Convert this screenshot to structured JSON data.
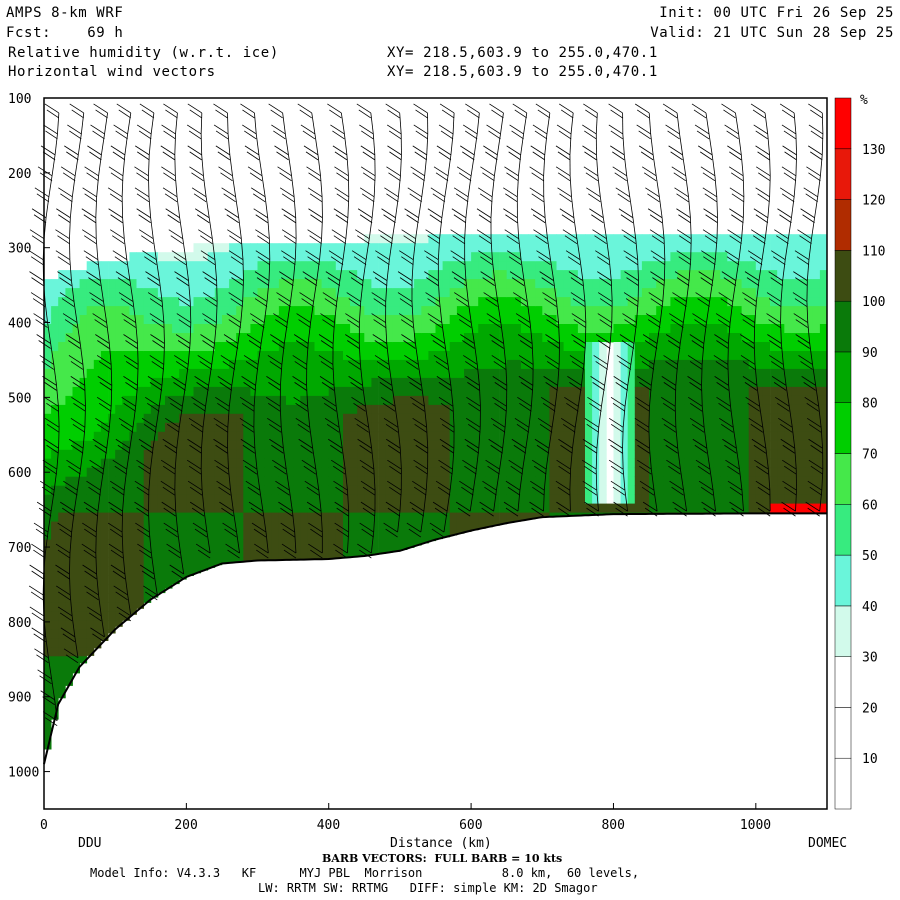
{
  "header": {
    "model": "AMPS 8-km WRF",
    "fcst": "Fcst:    69 h",
    "field1": "Relative humidity (w.r.t. ice)",
    "field2": "Horizontal wind vectors",
    "xy1": "XY= 218.5,603.9 to 255.0,470.1",
    "xy2": "XY= 218.5,603.9 to 255.0,470.1",
    "init": "Init: 00 UTC Fri 26 Sep 25",
    "valid": "Valid: 21 UTC Sun 28 Sep 25"
  },
  "footer": {
    "barb": "BARB VECTORS:  FULL BARB = 10 kts",
    "model_info": "Model Info: V4.3.3   KF      MYJ PBL  Morrison           8.0 km,  60 levels,",
    "physics": "LW: RRTM SW: RRTMG   DIFF: simple KM: 2D Smagor"
  },
  "colors": {
    "c30_40": "#d2faeb",
    "c40_50": "#6af5da",
    "c50_60": "#37eb7f",
    "c60_70": "#45e84a",
    "c70_80": "#00ce00",
    "c80_90": "#00a800",
    "c90_100": "#0a7a0a",
    "c100_110": "#3d4c12",
    "c110_120": "#b02c00",
    "c120_130": "#e8180a",
    "c130_140": "#ff0000"
  },
  "chart_data": {
    "type": "heatmap",
    "title": "Relative humidity (w.r.t. ice)",
    "xlabel": "Distance (km)",
    "ylabel": "",
    "xlim": [
      0,
      1100
    ],
    "ylim": [
      1050,
      100
    ],
    "x_ticks": [
      "0",
      "200",
      "400",
      "600",
      "800",
      "1000"
    ],
    "y_ticks": [
      "100",
      "200",
      "300",
      "400",
      "500",
      "600",
      "700",
      "800",
      "900",
      "1000"
    ],
    "x_end_labels": {
      "left": "DDU",
      "right": "DOMEC"
    },
    "colorbar": {
      "unit": "%",
      "tick_labels": [
        "10",
        "20",
        "30",
        "40",
        "50",
        "60",
        "70",
        "80",
        "90",
        "100",
        "110",
        "120",
        "130"
      ],
      "levels": [
        0,
        10,
        20,
        30,
        40,
        50,
        60,
        70,
        80,
        90,
        100,
        110,
        120,
        130,
        140
      ]
    },
    "terrain_pressure_hPa": [
      [
        0,
        990
      ],
      [
        20,
        910
      ],
      [
        50,
        860
      ],
      [
        80,
        830
      ],
      [
        100,
        810
      ],
      [
        150,
        770
      ],
      [
        200,
        740
      ],
      [
        250,
        722
      ],
      [
        300,
        718
      ],
      [
        400,
        716
      ],
      [
        450,
        712
      ],
      [
        500,
        705
      ],
      [
        550,
        690
      ],
      [
        600,
        678
      ],
      [
        650,
        668
      ],
      [
        700,
        660
      ],
      [
        800,
        656
      ],
      [
        1000,
        655
      ],
      [
        1100,
        655
      ]
    ]
  }
}
